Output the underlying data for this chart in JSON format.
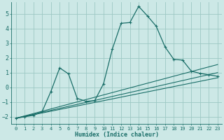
{
  "xlabel": "Humidex (Indice chaleur)",
  "xlim": [
    -0.5,
    23.5
  ],
  "ylim": [
    -2.5,
    5.8
  ],
  "yticks": [
    -2,
    -1,
    0,
    1,
    2,
    3,
    4,
    5
  ],
  "xticks": [
    0,
    1,
    2,
    3,
    4,
    5,
    6,
    7,
    8,
    9,
    10,
    11,
    12,
    13,
    14,
    15,
    16,
    17,
    18,
    19,
    20,
    21,
    22,
    23
  ],
  "bg_color": "#cce8e6",
  "grid_color": "#9dc8c4",
  "line_color": "#1a6e68",
  "main_line": {
    "x": [
      0,
      1,
      2,
      3,
      4,
      5,
      6,
      7,
      8,
      9,
      10,
      11,
      12,
      13,
      14,
      15,
      16,
      17,
      18,
      19,
      20,
      21,
      22,
      23
    ],
    "y": [
      -2.1,
      -2.0,
      -1.9,
      -1.65,
      -0.28,
      1.32,
      0.92,
      -0.75,
      -0.95,
      -0.9,
      0.25,
      2.6,
      4.35,
      4.4,
      5.5,
      4.85,
      4.15,
      2.75,
      1.9,
      1.85,
      1.1,
      0.95,
      0.85,
      0.75
    ]
  },
  "straight_lines": [
    {
      "x0": 0,
      "y0": -2.1,
      "x1": 23,
      "y1": 0.65
    },
    {
      "x0": 0,
      "y0": -2.1,
      "x1": 23,
      "y1": 1.0
    },
    {
      "x0": 0,
      "y0": -2.1,
      "x1": 23,
      "y1": 1.55
    }
  ]
}
